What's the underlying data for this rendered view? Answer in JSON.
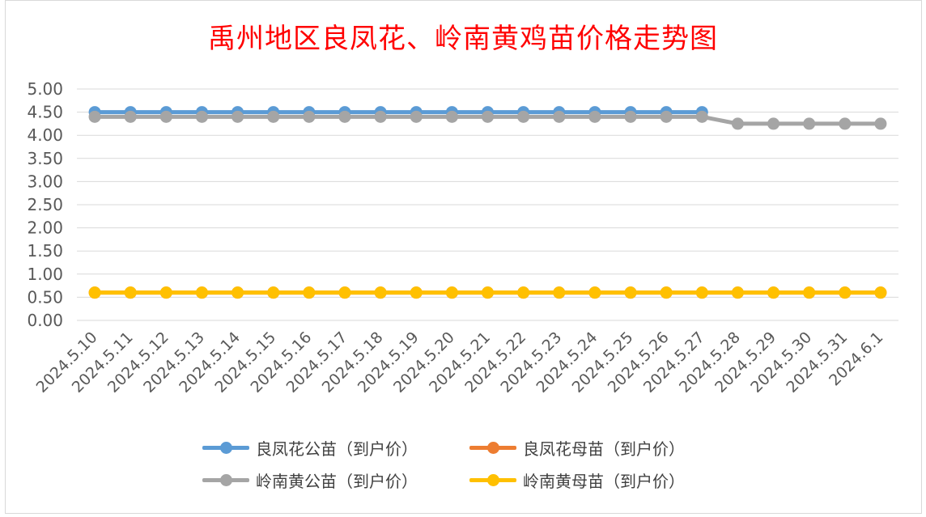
{
  "chart_data": {
    "type": "line",
    "title": "禹州地区良凤花、岭南黄鸡苗价格走势图",
    "xlabel": "",
    "ylabel": "",
    "ylim": [
      0,
      5
    ],
    "yticks": [
      "0.00",
      "0.50",
      "1.00",
      "1.50",
      "2.00",
      "2.50",
      "3.00",
      "3.50",
      "4.00",
      "4.50",
      "5.00"
    ],
    "grid": true,
    "legend_position": "bottom",
    "categories": [
      "2024.5.10",
      "2024.5.11",
      "2024.5.12",
      "2024.5.13",
      "2024.5.14",
      "2024.5.15",
      "2024.5.16",
      "2024.5.17",
      "2024.5.18",
      "2024.5.19",
      "2024.5.20",
      "2024.5.21",
      "2024.5.22",
      "2024.5.23",
      "2024.5.24",
      "2024.5.25",
      "2024.5.26",
      "2024.5.27",
      "2024.5.28",
      "2024.5.29",
      "2024.5.30",
      "2024.5.31",
      "2024.6.1"
    ],
    "series": [
      {
        "name": "良凤花公苗（到户价）",
        "color": "#5b9bd5",
        "values": [
          4.5,
          4.5,
          4.5,
          4.5,
          4.5,
          4.5,
          4.5,
          4.5,
          4.5,
          4.5,
          4.5,
          4.5,
          4.5,
          4.5,
          4.5,
          4.5,
          4.5,
          4.5,
          null,
          null,
          null,
          null,
          null
        ]
      },
      {
        "name": "良凤花母苗（到户价）",
        "color": "#ed7d31",
        "values": [
          0.6,
          0.6,
          0.6,
          0.6,
          0.6,
          0.6,
          0.6,
          0.6,
          0.6,
          0.6,
          0.6,
          0.6,
          0.6,
          0.6,
          0.6,
          0.6,
          0.6,
          0.6,
          0.6,
          0.6,
          0.6,
          0.6,
          0.6
        ]
      },
      {
        "name": "岭南黄公苗（到户价）",
        "color": "#a5a5a5",
        "values": [
          4.4,
          4.4,
          4.4,
          4.4,
          4.4,
          4.4,
          4.4,
          4.4,
          4.4,
          4.4,
          4.4,
          4.4,
          4.4,
          4.4,
          4.4,
          4.4,
          4.4,
          4.4,
          4.25,
          4.25,
          4.25,
          4.25,
          4.25
        ]
      },
      {
        "name": "岭南黄母苗（到户价）",
        "color": "#ffc000",
        "values": [
          0.6,
          0.6,
          0.6,
          0.6,
          0.6,
          0.6,
          0.6,
          0.6,
          0.6,
          0.6,
          0.6,
          0.6,
          0.6,
          0.6,
          0.6,
          0.6,
          0.6,
          0.6,
          0.6,
          0.6,
          0.6,
          0.6,
          0.6
        ]
      }
    ]
  }
}
